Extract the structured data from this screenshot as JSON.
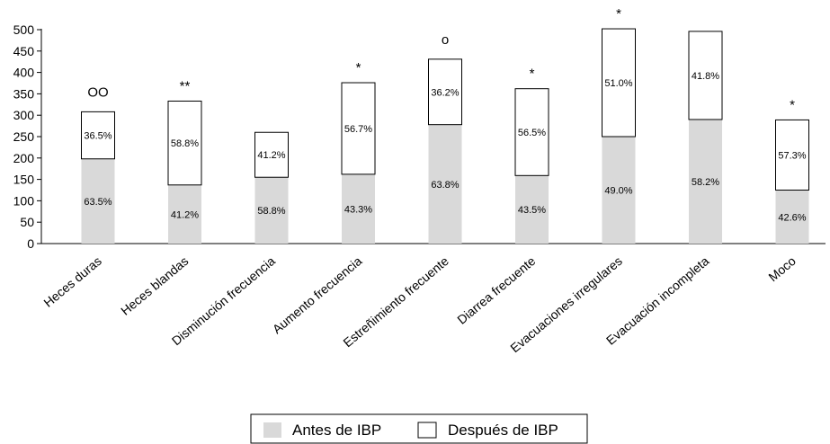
{
  "chart_data": {
    "type": "bar",
    "stacked": true,
    "categories": [
      "Heces duras",
      "Heces blandas",
      "Disminución frecuencia",
      "Aumento frecuencia",
      "Estreñimiento frecuente",
      "Diarrea frecuente",
      "Evacuaciones irregulares",
      "Evacuación incompleta",
      "Moco"
    ],
    "series": [
      {
        "name": "Antes de IBP",
        "values": [
          198,
          137,
          155,
          162,
          278,
          159,
          250,
          290,
          125
        ],
        "labels": [
          "63.5%",
          "41.2%",
          "58.8%",
          "43.3%",
          "63.8%",
          "43.5%",
          "49.0%",
          "58.2%",
          "42.6%"
        ],
        "color": "#d9d9d9"
      },
      {
        "name": "Después de IBP",
        "values": [
          110,
          196,
          105,
          214,
          153,
          203,
          252,
          206,
          164
        ],
        "labels": [
          "36.5%",
          "58.8%",
          "41.2%",
          "56.7%",
          "36.2%",
          "56.5%",
          "51.0%",
          "41.8%",
          "57.3%"
        ],
        "color": "#ffffff"
      }
    ],
    "significance": [
      "OO",
      "**",
      "",
      "*",
      "o",
      "*",
      "*",
      "",
      "*"
    ],
    "yticks": [
      0,
      50,
      100,
      150,
      200,
      250,
      300,
      350,
      400,
      450,
      500
    ],
    "ylim": [
      0,
      500
    ],
    "grid": false,
    "legend_position": "bottom"
  }
}
